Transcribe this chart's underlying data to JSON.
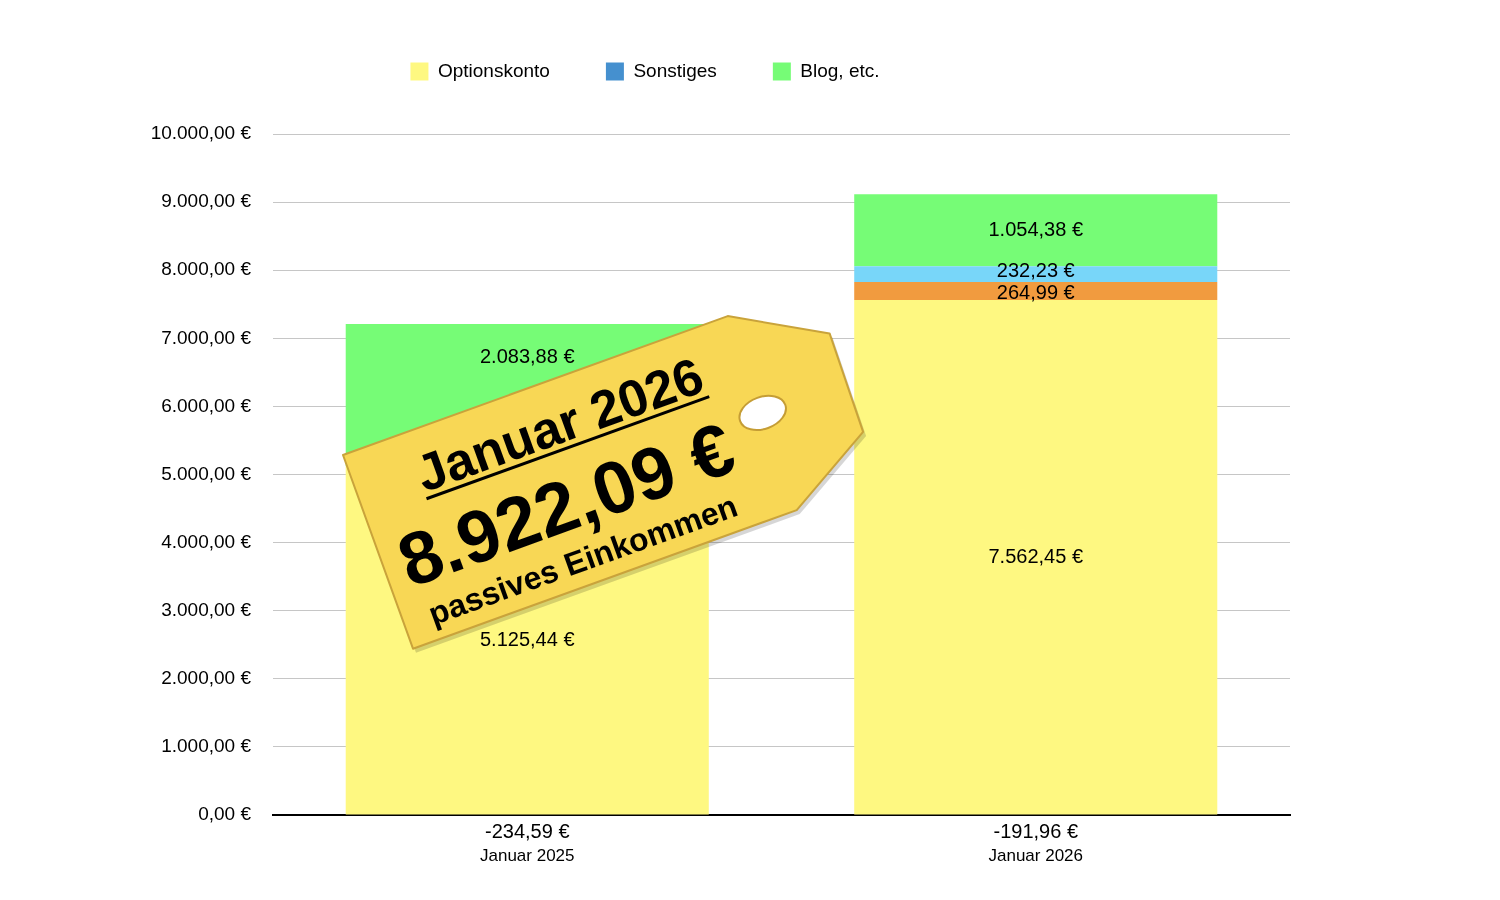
{
  "chart_data": {
    "type": "bar",
    "stacked": true,
    "categories": [
      "Januar 2025",
      "Januar 2026"
    ],
    "series": [
      {
        "name": "Optionskonto",
        "color": "#fef881",
        "values": [
          5125.44,
          7562.45
        ],
        "value_labels": [
          "5.125,44 €",
          "7.562,45 €"
        ]
      },
      {
        "color": "#f19b3f",
        "values": [
          null,
          264.99
        ],
        "value_labels": [
          null,
          "264,99 €"
        ]
      },
      {
        "color": "#78d6f9",
        "values": [
          null,
          232.23
        ],
        "value_labels": [
          null,
          "232,23 €"
        ]
      },
      {
        "name": "Sonstiges",
        "color": "#4590cf",
        "values": [
          null,
          null
        ],
        "value_labels": [
          "-234,59 €",
          "-191,96 €"
        ]
      },
      {
        "name": "Blog, etc.",
        "color": "#76fc76",
        "values": [
          2083.88,
          1054.38
        ],
        "value_labels": [
          "2.083,88 €",
          "1.054,38 €"
        ]
      }
    ],
    "ylim": [
      0,
      10000
    ],
    "yticks": [
      {
        "value": 0,
        "label": "0,00 €"
      },
      {
        "value": 1000,
        "label": "1.000,00 €"
      },
      {
        "value": 2000,
        "label": "2.000,00 €"
      },
      {
        "value": 3000,
        "label": "3.000,00 €"
      },
      {
        "value": 4000,
        "label": "4.000,00 €"
      },
      {
        "value": 5000,
        "label": "5.000,00 €"
      },
      {
        "value": 6000,
        "label": "6.000,00 €"
      },
      {
        "value": 7000,
        "label": "7.000,00 €"
      },
      {
        "value": 8000,
        "label": "8.000,00 €"
      },
      {
        "value": 9000,
        "label": "9.000,00 €"
      },
      {
        "value": 10000,
        "label": "10.000,00 €"
      }
    ],
    "grid": "y",
    "legend": "top",
    "annotations": [
      "Januar 2026",
      "8.922,09 €",
      "passives Einkommen"
    ]
  }
}
